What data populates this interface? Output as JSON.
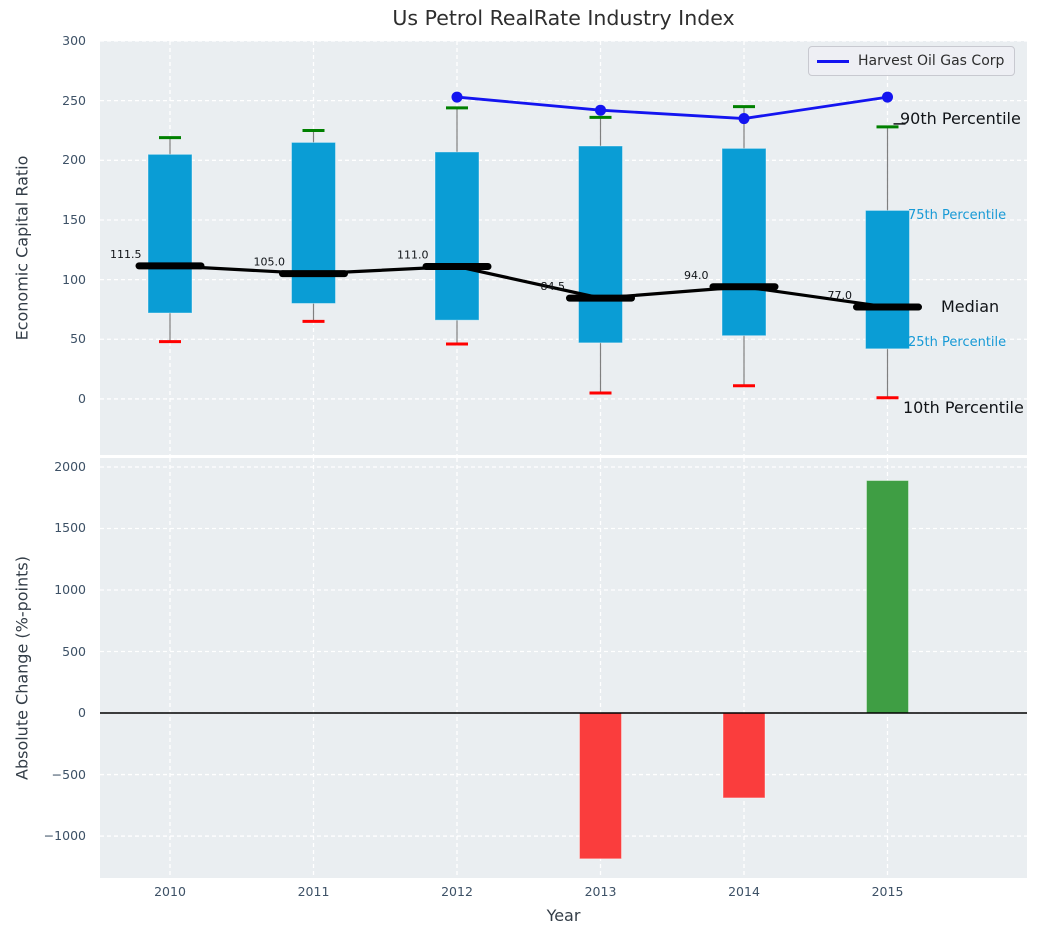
{
  "labels": {
    "title": "Us Petrol RealRate Industry Index",
    "top_ylabel": "Economic Capital Ratio",
    "bottom_ylabel": "Absolute Change (%-points)",
    "xlabel": "Year",
    "legend": "Harvest Oil Gas Corp"
  },
  "annotations": {
    "p90": "90th Percentile",
    "p75": "75th Percentile",
    "median": "Median",
    "p25": "25th Percentile",
    "p10": "10th Percentile"
  },
  "colors": {
    "box_fill": "#0a9dd5",
    "box_edge": "rgba(255,255,255,0.4)",
    "whisker": "#7f7f7f",
    "cap_high": "#008000",
    "cap_low": "#ff0000",
    "median_line": "#000000",
    "harvest_line": "#1414f0",
    "bar_positive": "#3f9e44",
    "bar_negative": "#fa3d3d",
    "axes_bg": "#eaeef1",
    "grid": "#ffffff",
    "tick_text": "#3d5166",
    "percentile_text": "#189ad6",
    "zero_line": "#000000"
  },
  "chart_data": [
    {
      "type": "boxplot+line",
      "title": "Us Petrol RealRate Industry Index",
      "ylabel": "Economic Capital Ratio",
      "categories": [
        "2010",
        "2011",
        "2012",
        "2013",
        "2014",
        "2015"
      ],
      "yticks": [
        0,
        50,
        100,
        150,
        200,
        250,
        300
      ],
      "ylim": [
        -47,
        300
      ],
      "grid": true,
      "legend_position": "upper right",
      "series": [
        {
          "name": "10th Percentile",
          "values": [
            48,
            65,
            46,
            5,
            11,
            1
          ]
        },
        {
          "name": "25th Percentile",
          "values": [
            72,
            80,
            66,
            47,
            53,
            42
          ]
        },
        {
          "name": "Median",
          "values": [
            111.5,
            105.0,
            111.0,
            84.5,
            94.0,
            77.0
          ]
        },
        {
          "name": "75th Percentile",
          "values": [
            205,
            215,
            207,
            212,
            210,
            158
          ]
        },
        {
          "name": "90th Percentile",
          "values": [
            219,
            225,
            244,
            236,
            245,
            228
          ]
        },
        {
          "name": "Harvest Oil Gas Corp",
          "values": [
            null,
            null,
            253,
            242,
            235,
            253
          ]
        }
      ],
      "median_labels": [
        "111.5",
        "105.0",
        "111.0",
        "84.5",
        "94.0",
        "77.0"
      ]
    },
    {
      "type": "bar",
      "ylabel": "Absolute Change (%-points)",
      "xlabel": "Year",
      "categories": [
        "2010",
        "2011",
        "2012",
        "2013",
        "2014",
        "2015"
      ],
      "values": [
        null,
        null,
        null,
        -1185,
        -690,
        1890
      ],
      "yticks": [
        -1000,
        -500,
        0,
        500,
        1000,
        1500,
        2000
      ],
      "ylim": [
        -1341,
        2073
      ],
      "grid": true
    }
  ]
}
